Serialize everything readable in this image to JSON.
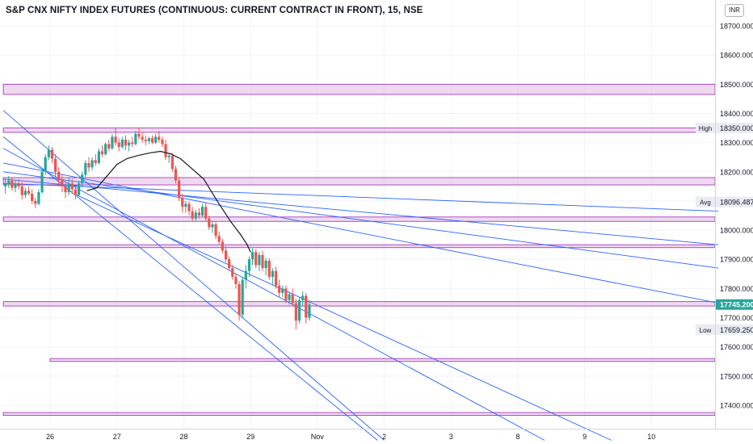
{
  "header": {
    "title": "S&P CNX NIFTY INDEX FUTURES (CONTINUOUS: CURRENT CONTRACT IN FRONT), 15, NSE",
    "currency": "INR"
  },
  "chart_data": {
    "type": "candlestick",
    "y_axis": {
      "range": [
        17330,
        18735
      ],
      "ticks": [
        "17400.000",
        "17500.000",
        "17600.000",
        "17700.000",
        "17800.000",
        "17900.000",
        "18000.000",
        "18100.000",
        "18200.000",
        "18300.000",
        "18400.000",
        "18500.000",
        "18600.000",
        "18700.000"
      ]
    },
    "x_axis": {
      "ticks": [
        {
          "label": "26",
          "day": 26
        },
        {
          "label": "27",
          "day": 27
        },
        {
          "label": "28",
          "day": 28
        },
        {
          "label": "29",
          "day": 29
        },
        {
          "label": "Nov",
          "day": 30
        },
        {
          "label": "2",
          "day": 31
        },
        {
          "label": "3",
          "day": 32
        },
        {
          "label": "8",
          "day": 33
        },
        {
          "label": "9",
          "day": 34
        },
        {
          "label": "10",
          "day": 35
        }
      ]
    },
    "price_labels": [
      {
        "name": "High",
        "value": 18350,
        "text": "18350.000",
        "style": "plain"
      },
      {
        "name": "Avg",
        "value": 18096.487,
        "text": "18096.487",
        "style": "plain"
      },
      {
        "name": "",
        "value": 17745.2,
        "text": "17745.200",
        "style": "current"
      },
      {
        "name": "Low",
        "value": 17659.25,
        "text": "17659.250",
        "style": "plain"
      }
    ],
    "zones": [
      {
        "from_day": 25.3,
        "y1": 18500,
        "y2": 18465
      },
      {
        "from_day": 25.3,
        "y1": 18350,
        "y2": 18335
      },
      {
        "from_day": 25.3,
        "y1": 18180,
        "y2": 18155
      },
      {
        "from_day": 25.3,
        "y1": 18045,
        "y2": 18030
      },
      {
        "from_day": 25.3,
        "y1": 17950,
        "y2": 17940
      },
      {
        "from_day": 25.3,
        "y1": 17755,
        "y2": 17740
      },
      {
        "from_day": 26.0,
        "y1": 17560,
        "y2": 17550
      },
      {
        "from_day": 25.3,
        "y1": 17375,
        "y2": 17365
      }
    ],
    "trendlines": [
      {
        "start": [
          25.3,
          18160
        ],
        "end": [
          36.0,
          18065
        ]
      },
      {
        "start": [
          25.3,
          18175
        ],
        "end": [
          36.0,
          17950
        ]
      },
      {
        "start": [
          25.3,
          18200
        ],
        "end": [
          36.0,
          17870
        ]
      },
      {
        "start": [
          25.3,
          18230
        ],
        "end": [
          36.0,
          17750
        ]
      },
      {
        "start": [
          25.3,
          18410
        ],
        "end": [
          31.0,
          17280
        ]
      },
      {
        "start": [
          25.3,
          18320
        ],
        "end": [
          30.9,
          17280
        ]
      },
      {
        "start": [
          25.3,
          18280
        ],
        "end": [
          33.4,
          17280
        ]
      },
      {
        "start": [
          26.4,
          18120
        ],
        "end": [
          34.4,
          17280
        ]
      }
    ],
    "moving_average": [
      [
        26.55,
        18135
      ],
      [
        26.7,
        18145
      ],
      [
        26.85,
        18185
      ],
      [
        27.0,
        18225
      ],
      [
        27.15,
        18245
      ],
      [
        27.3,
        18255
      ],
      [
        27.5,
        18265
      ],
      [
        27.65,
        18270
      ],
      [
        27.8,
        18262
      ],
      [
        27.95,
        18245
      ],
      [
        28.1,
        18215
      ],
      [
        28.3,
        18175
      ],
      [
        28.5,
        18100
      ],
      [
        28.7,
        18030
      ],
      [
        28.85,
        17985
      ],
      [
        28.95,
        17950
      ],
      [
        29.0,
        17925
      ]
    ],
    "candles": [
      {
        "d": 25.33,
        "o": 18150,
        "h": 18175,
        "l": 18125,
        "c": 18160
      },
      {
        "d": 25.38,
        "o": 18160,
        "h": 18185,
        "l": 18145,
        "c": 18170
      },
      {
        "d": 25.43,
        "o": 18170,
        "h": 18180,
        "l": 18135,
        "c": 18145
      },
      {
        "d": 25.48,
        "o": 18145,
        "h": 18170,
        "l": 18130,
        "c": 18160
      },
      {
        "d": 25.53,
        "o": 18160,
        "h": 18175,
        "l": 18140,
        "c": 18150
      },
      {
        "d": 25.58,
        "o": 18150,
        "h": 18165,
        "l": 18105,
        "c": 18120
      },
      {
        "d": 25.63,
        "o": 18120,
        "h": 18145,
        "l": 18110,
        "c": 18135
      },
      {
        "d": 25.68,
        "o": 18135,
        "h": 18150,
        "l": 18120,
        "c": 18125
      },
      {
        "d": 25.73,
        "o": 18125,
        "h": 18140,
        "l": 18090,
        "c": 18100
      },
      {
        "d": 25.78,
        "o": 18100,
        "h": 18110,
        "l": 18075,
        "c": 18090
      },
      {
        "d": 25.83,
        "o": 18090,
        "h": 18140,
        "l": 18085,
        "c": 18130
      },
      {
        "d": 25.88,
        "o": 18130,
        "h": 18210,
        "l": 18125,
        "c": 18200
      },
      {
        "d": 25.93,
        "o": 18200,
        "h": 18260,
        "l": 18190,
        "c": 18250
      },
      {
        "d": 25.98,
        "o": 18250,
        "h": 18290,
        "l": 18240,
        "c": 18275
      },
      {
        "d": 26.03,
        "o": 18275,
        "h": 18285,
        "l": 18230,
        "c": 18245
      },
      {
        "d": 26.08,
        "o": 18245,
        "h": 18260,
        "l": 18180,
        "c": 18200
      },
      {
        "d": 26.13,
        "o": 18200,
        "h": 18215,
        "l": 18150,
        "c": 18170
      },
      {
        "d": 26.18,
        "o": 18170,
        "h": 18190,
        "l": 18130,
        "c": 18150
      },
      {
        "d": 26.23,
        "o": 18150,
        "h": 18165,
        "l": 18110,
        "c": 18130
      },
      {
        "d": 26.28,
        "o": 18130,
        "h": 18180,
        "l": 18120,
        "c": 18160
      },
      {
        "d": 26.33,
        "o": 18160,
        "h": 18175,
        "l": 18125,
        "c": 18140
      },
      {
        "d": 26.38,
        "o": 18140,
        "h": 18150,
        "l": 18105,
        "c": 18120
      },
      {
        "d": 26.43,
        "o": 18120,
        "h": 18170,
        "l": 18115,
        "c": 18160
      },
      {
        "d": 26.48,
        "o": 18160,
        "h": 18200,
        "l": 18150,
        "c": 18190
      },
      {
        "d": 26.53,
        "o": 18190,
        "h": 18240,
        "l": 18180,
        "c": 18230
      },
      {
        "d": 26.58,
        "o": 18230,
        "h": 18250,
        "l": 18200,
        "c": 18215
      },
      {
        "d": 26.63,
        "o": 18215,
        "h": 18250,
        "l": 18205,
        "c": 18240
      },
      {
        "d": 26.68,
        "o": 18240,
        "h": 18260,
        "l": 18220,
        "c": 18230
      },
      {
        "d": 26.73,
        "o": 18230,
        "h": 18280,
        "l": 18225,
        "c": 18270
      },
      {
        "d": 26.78,
        "o": 18270,
        "h": 18290,
        "l": 18250,
        "c": 18260
      },
      {
        "d": 26.83,
        "o": 18260,
        "h": 18300,
        "l": 18255,
        "c": 18295
      },
      {
        "d": 26.88,
        "o": 18295,
        "h": 18310,
        "l": 18270,
        "c": 18280
      },
      {
        "d": 26.93,
        "o": 18280,
        "h": 18330,
        "l": 18275,
        "c": 18320
      },
      {
        "d": 26.98,
        "o": 18320,
        "h": 18350,
        "l": 18290,
        "c": 18300
      },
      {
        "d": 27.03,
        "o": 18300,
        "h": 18315,
        "l": 18270,
        "c": 18285
      },
      {
        "d": 27.08,
        "o": 18285,
        "h": 18320,
        "l": 18280,
        "c": 18310
      },
      {
        "d": 27.13,
        "o": 18310,
        "h": 18325,
        "l": 18275,
        "c": 18290
      },
      {
        "d": 27.18,
        "o": 18290,
        "h": 18310,
        "l": 18270,
        "c": 18300
      },
      {
        "d": 27.23,
        "o": 18300,
        "h": 18320,
        "l": 18285,
        "c": 18295
      },
      {
        "d": 27.28,
        "o": 18295,
        "h": 18340,
        "l": 18290,
        "c": 18330
      },
      {
        "d": 27.33,
        "o": 18330,
        "h": 18350,
        "l": 18310,
        "c": 18320
      },
      {
        "d": 27.38,
        "o": 18320,
        "h": 18335,
        "l": 18300,
        "c": 18310
      },
      {
        "d": 27.43,
        "o": 18310,
        "h": 18325,
        "l": 18290,
        "c": 18305
      },
      {
        "d": 27.48,
        "o": 18305,
        "h": 18320,
        "l": 18295,
        "c": 18315
      },
      {
        "d": 27.53,
        "o": 18315,
        "h": 18325,
        "l": 18295,
        "c": 18300
      },
      {
        "d": 27.58,
        "o": 18300,
        "h": 18330,
        "l": 18295,
        "c": 18320
      },
      {
        "d": 27.63,
        "o": 18320,
        "h": 18340,
        "l": 18300,
        "c": 18310
      },
      {
        "d": 27.68,
        "o": 18310,
        "h": 18320,
        "l": 18285,
        "c": 18295
      },
      {
        "d": 27.73,
        "o": 18295,
        "h": 18310,
        "l": 18240,
        "c": 18250
      },
      {
        "d": 27.78,
        "o": 18250,
        "h": 18265,
        "l": 18230,
        "c": 18255
      },
      {
        "d": 27.83,
        "o": 18255,
        "h": 18265,
        "l": 18200,
        "c": 18210
      },
      {
        "d": 27.88,
        "o": 18210,
        "h": 18220,
        "l": 18160,
        "c": 18170
      },
      {
        "d": 27.93,
        "o": 18170,
        "h": 18180,
        "l": 18100,
        "c": 18110
      },
      {
        "d": 27.98,
        "o": 18110,
        "h": 18125,
        "l": 18060,
        "c": 18080
      },
      {
        "d": 28.03,
        "o": 18080,
        "h": 18100,
        "l": 18060,
        "c": 18090
      },
      {
        "d": 28.08,
        "o": 18090,
        "h": 18100,
        "l": 18050,
        "c": 18065
      },
      {
        "d": 28.13,
        "o": 18065,
        "h": 18080,
        "l": 18030,
        "c": 18040
      },
      {
        "d": 28.18,
        "o": 18040,
        "h": 18070,
        "l": 18030,
        "c": 18060
      },
      {
        "d": 28.23,
        "o": 18060,
        "h": 18075,
        "l": 18040,
        "c": 18050
      },
      {
        "d": 28.28,
        "o": 18050,
        "h": 18090,
        "l": 18045,
        "c": 18080
      },
      {
        "d": 28.33,
        "o": 18080,
        "h": 18095,
        "l": 18030,
        "c": 18040
      },
      {
        "d": 28.38,
        "o": 18040,
        "h": 18050,
        "l": 18000,
        "c": 18010
      },
      {
        "d": 28.43,
        "o": 18010,
        "h": 18030,
        "l": 17990,
        "c": 18020
      },
      {
        "d": 28.48,
        "o": 18020,
        "h": 18030,
        "l": 17970,
        "c": 17980
      },
      {
        "d": 28.53,
        "o": 17980,
        "h": 17995,
        "l": 17950,
        "c": 17960
      },
      {
        "d": 28.58,
        "o": 17960,
        "h": 17970,
        "l": 17920,
        "c": 17930
      },
      {
        "d": 28.63,
        "o": 17930,
        "h": 17945,
        "l": 17890,
        "c": 17900
      },
      {
        "d": 28.68,
        "o": 17900,
        "h": 17910,
        "l": 17860,
        "c": 17870
      },
      {
        "d": 28.73,
        "o": 17870,
        "h": 17880,
        "l": 17830,
        "c": 17840
      },
      {
        "d": 28.78,
        "o": 17840,
        "h": 17850,
        "l": 17800,
        "c": 17815
      },
      {
        "d": 28.83,
        "o": 17815,
        "h": 17825,
        "l": 17690,
        "c": 17710
      },
      {
        "d": 28.88,
        "o": 17710,
        "h": 17840,
        "l": 17700,
        "c": 17830
      },
      {
        "d": 28.93,
        "o": 17830,
        "h": 17880,
        "l": 17800,
        "c": 17860
      },
      {
        "d": 28.98,
        "o": 17860,
        "h": 17910,
        "l": 17840,
        "c": 17900
      },
      {
        "d": 29.03,
        "o": 17900,
        "h": 17940,
        "l": 17880,
        "c": 17925
      },
      {
        "d": 29.08,
        "o": 17925,
        "h": 17935,
        "l": 17870,
        "c": 17880
      },
      {
        "d": 29.13,
        "o": 17880,
        "h": 17925,
        "l": 17860,
        "c": 17915
      },
      {
        "d": 29.18,
        "o": 17915,
        "h": 17930,
        "l": 17860,
        "c": 17870
      },
      {
        "d": 29.23,
        "o": 17870,
        "h": 17905,
        "l": 17845,
        "c": 17895
      },
      {
        "d": 29.28,
        "o": 17895,
        "h": 17905,
        "l": 17830,
        "c": 17840
      },
      {
        "d": 29.33,
        "o": 17840,
        "h": 17870,
        "l": 17810,
        "c": 17860
      },
      {
        "d": 29.38,
        "o": 17860,
        "h": 17875,
        "l": 17800,
        "c": 17810
      },
      {
        "d": 29.43,
        "o": 17810,
        "h": 17830,
        "l": 17770,
        "c": 17785
      },
      {
        "d": 29.48,
        "o": 17785,
        "h": 17810,
        "l": 17770,
        "c": 17800
      },
      {
        "d": 29.53,
        "o": 17800,
        "h": 17810,
        "l": 17750,
        "c": 17760
      },
      {
        "d": 29.58,
        "o": 17760,
        "h": 17790,
        "l": 17745,
        "c": 17780
      },
      {
        "d": 29.63,
        "o": 17780,
        "h": 17800,
        "l": 17740,
        "c": 17750
      },
      {
        "d": 29.68,
        "o": 17750,
        "h": 17765,
        "l": 17660,
        "c": 17690
      },
      {
        "d": 29.73,
        "o": 17690,
        "h": 17770,
        "l": 17680,
        "c": 17760
      },
      {
        "d": 29.78,
        "o": 17760,
        "h": 17790,
        "l": 17740,
        "c": 17775
      },
      {
        "d": 29.83,
        "o": 17775,
        "h": 17785,
        "l": 17680,
        "c": 17700
      },
      {
        "d": 29.88,
        "o": 17700,
        "h": 17760,
        "l": 17690,
        "c": 17745
      }
    ]
  }
}
